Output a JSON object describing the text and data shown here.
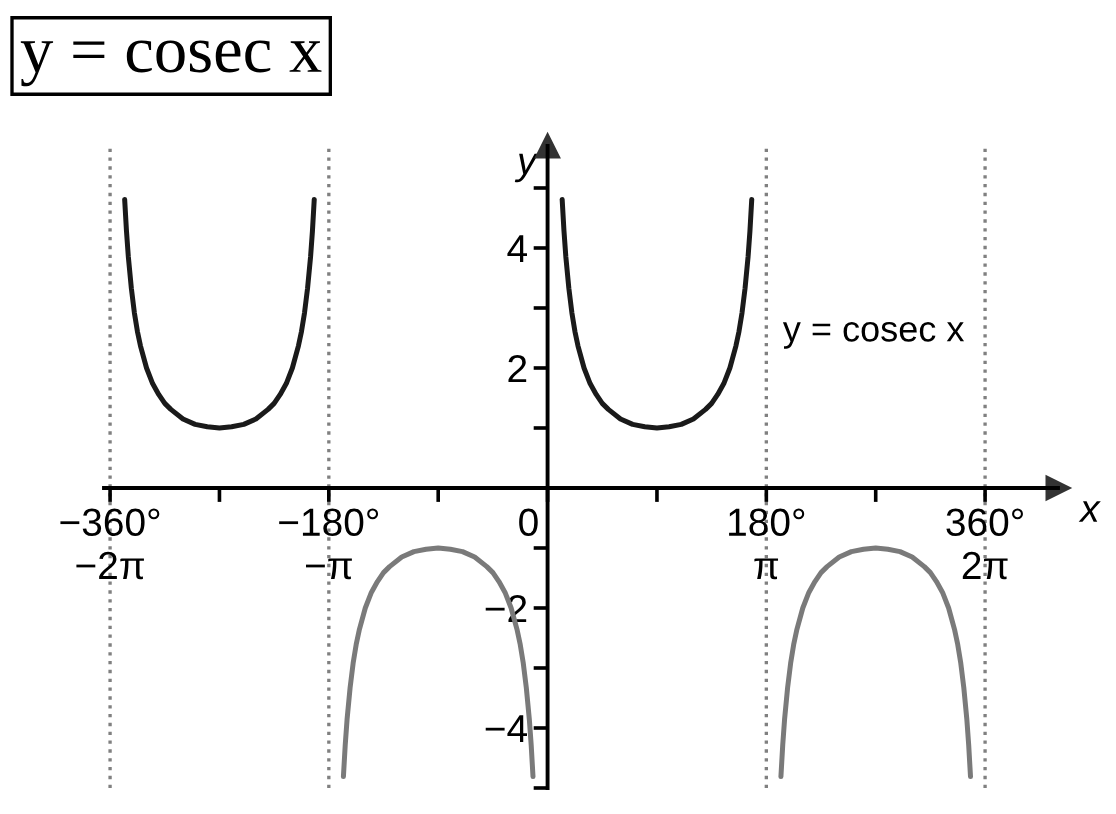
{
  "chart_data": {
    "type": "line",
    "title": "y = cosec x",
    "xlabel": "x",
    "ylabel": "y",
    "line_style": "solid",
    "series": [
      {
        "color": "#1a1a1a",
        "x": [
          -348,
          -346.5,
          -345,
          -342.5,
          -340,
          -337.5,
          -335,
          -330,
          -325,
          -320,
          -315,
          -310,
          -300,
          -290,
          -280,
          -270,
          -260,
          -250,
          -240,
          -230,
          -225,
          -220,
          -215,
          -210,
          -205,
          -202.5,
          -200,
          -197.5,
          -195,
          -193.5,
          -192
        ],
        "values": [
          4.81,
          4.28,
          3.86,
          3.33,
          2.92,
          2.61,
          2.37,
          2.0,
          1.74,
          1.56,
          1.41,
          1.31,
          1.15,
          1.06,
          1.02,
          1.0,
          1.02,
          1.06,
          1.15,
          1.31,
          1.41,
          1.56,
          1.74,
          2.0,
          2.37,
          2.61,
          2.92,
          3.33,
          3.86,
          4.28,
          4.81
        ]
      },
      {
        "color": "#7a7a7a",
        "x": [
          -168,
          -166.5,
          -165,
          -162.5,
          -160,
          -157.5,
          -155,
          -150,
          -145,
          -140,
          -135,
          -130,
          -120,
          -110,
          -100,
          -90,
          -80,
          -70,
          -60,
          -50,
          -45,
          -40,
          -35,
          -30,
          -25,
          -22.5,
          -20,
          -17.5,
          -15,
          -13.5,
          -12
        ],
        "values": [
          -4.81,
          -4.28,
          -3.86,
          -3.33,
          -2.92,
          -2.61,
          -2.37,
          -2.0,
          -1.74,
          -1.56,
          -1.41,
          -1.31,
          -1.15,
          -1.06,
          -1.02,
          -1.0,
          -1.02,
          -1.06,
          -1.15,
          -1.31,
          -1.41,
          -1.56,
          -1.74,
          -2.0,
          -2.37,
          -2.61,
          -2.92,
          -3.33,
          -3.86,
          -4.28,
          -4.81
        ]
      },
      {
        "color": "#1a1a1a",
        "x": [
          12,
          13.5,
          15,
          17.5,
          20,
          22.5,
          25,
          30,
          35,
          40,
          45,
          50,
          60,
          70,
          80,
          90,
          100,
          110,
          120,
          130,
          135,
          140,
          145,
          150,
          155,
          157.5,
          160,
          162.5,
          165,
          166.5,
          168
        ],
        "values": [
          4.81,
          4.28,
          3.86,
          3.33,
          2.92,
          2.61,
          2.37,
          2.0,
          1.74,
          1.56,
          1.41,
          1.31,
          1.15,
          1.06,
          1.02,
          1.0,
          1.02,
          1.06,
          1.15,
          1.31,
          1.41,
          1.56,
          1.74,
          2.0,
          2.37,
          2.61,
          2.92,
          3.33,
          3.86,
          4.28,
          4.81
        ]
      },
      {
        "color": "#7a7a7a",
        "x": [
          192,
          193.5,
          195,
          197.5,
          200,
          202.5,
          205,
          210,
          215,
          220,
          225,
          230,
          240,
          250,
          260,
          270,
          280,
          290,
          300,
          310,
          315,
          320,
          325,
          330,
          335,
          337.5,
          340,
          342.5,
          345,
          346.5,
          348
        ],
        "values": [
          -4.81,
          -4.28,
          -3.86,
          -3.33,
          -2.92,
          -2.61,
          -2.37,
          -2.0,
          -1.74,
          -1.56,
          -1.41,
          -1.31,
          -1.15,
          -1.06,
          -1.02,
          -1.0,
          -1.02,
          -1.06,
          -1.15,
          -1.31,
          -1.41,
          -1.56,
          -1.74,
          -2.0,
          -2.37,
          -2.61,
          -2.92,
          -3.33,
          -3.86,
          -4.28,
          -4.81
        ]
      }
    ],
    "xlim": [
      -365,
      420
    ],
    "ylim": [
      -5,
      5.7
    ],
    "xticks": [
      {
        "value": -360,
        "label": "−360°\n−2π"
      },
      {
        "value": -270,
        "label": null
      },
      {
        "value": -180,
        "label": "−180°\n−π"
      },
      {
        "value": -90,
        "label": null
      },
      {
        "value": 0,
        "label": "0"
      },
      {
        "value": 90,
        "label": null
      },
      {
        "value": 180,
        "label": "180°\nπ"
      },
      {
        "value": 270,
        "label": null
      },
      {
        "value": 360,
        "label": "360°\n2π"
      }
    ],
    "yticks": [
      {
        "value": -5,
        "label": null
      },
      {
        "value": -4,
        "label": "−4"
      },
      {
        "value": -3,
        "label": null
      },
      {
        "value": -2,
        "label": "−2"
      },
      {
        "value": -1,
        "label": null
      },
      {
        "value": 1,
        "label": null
      },
      2,
      {
        "value": 3,
        "label": null
      },
      4,
      {
        "value": 5,
        "label": null
      }
    ],
    "ref_lines": [
      {
        "axis": "x",
        "value": -360,
        "color": "#808080",
        "line_style": "dotted"
      },
      {
        "axis": "x",
        "value": -180,
        "color": "#808080",
        "line_style": "dotted"
      },
      {
        "axis": "x",
        "value": 180,
        "color": "#808080",
        "line_style": "dotted"
      },
      {
        "axis": "x",
        "value": 360,
        "color": "#808080",
        "line_style": "dotted"
      }
    ],
    "annotations": [
      {
        "text": "y = cosec x",
        "x": 157,
        "y": 2.6
      }
    ]
  }
}
